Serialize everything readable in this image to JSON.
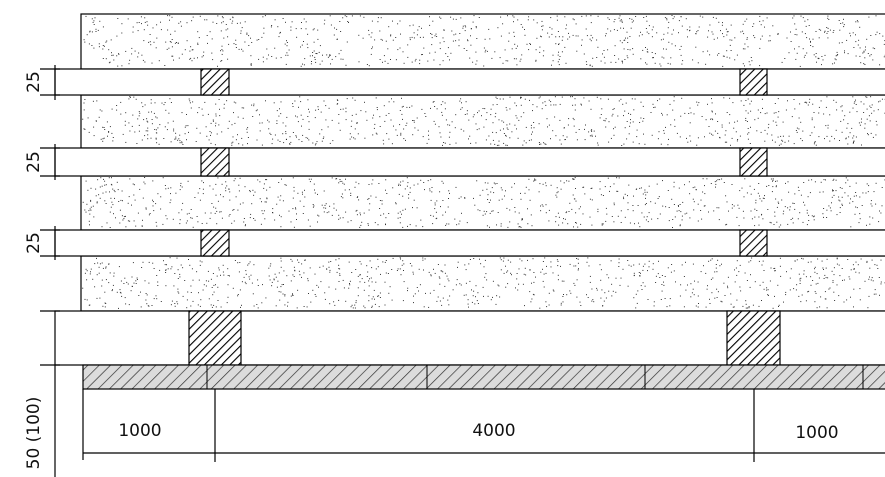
{
  "diagram": {
    "left_dimensions": [
      "25",
      "25",
      "25"
    ],
    "base_dimension": "50 (100)",
    "bottom_dimensions": [
      "1000",
      "4000",
      "1000"
    ],
    "layers": {
      "slabs": 4,
      "gaps": 4,
      "blocks_per_gap": 2
    },
    "colors": {
      "line": "#000000",
      "fill": "#ffffff",
      "speckle": "#333333",
      "base_hatch": "#555555"
    }
  }
}
